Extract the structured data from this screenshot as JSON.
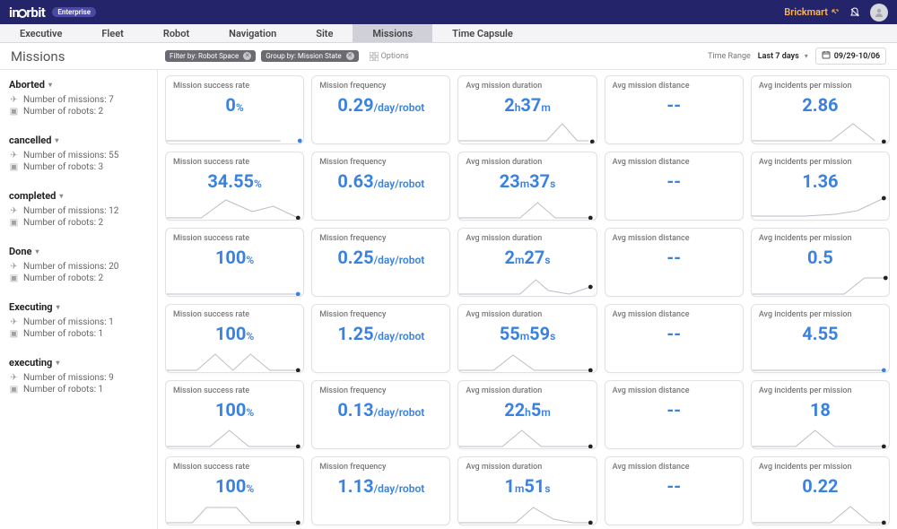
{
  "brand": {
    "name": "inOrbit",
    "badge": "Enterprise",
    "company": "Brickmart"
  },
  "nav": {
    "tabs": [
      "Executive",
      "Fleet",
      "Robot",
      "Navigation",
      "Site",
      "Missions",
      "Time Capsule"
    ],
    "active": "Missions"
  },
  "page": {
    "title": "Missions",
    "filters": {
      "filter_by": "Filter by: Robot Space",
      "group_by": "Group by: Mission State"
    },
    "options_label": "Options",
    "time_range_label": "Time Range",
    "time_range_value": "Last 7 days",
    "date_range": "09/29-10/06"
  },
  "card_labels": {
    "success": "Mission success rate",
    "freq": "Mission frequency",
    "freq_unit": "/day/robot",
    "duration": "Avg mission duration",
    "distance": "Avg mission distance",
    "incidents": "Avg incidents per mission"
  },
  "sidebar_labels": {
    "missions_prefix": "Number of missions:",
    "robots_prefix": "Number of robots:"
  },
  "colors": {
    "topbar_bg": "#24246b",
    "accent_blue": "#3a82e0",
    "accent_orange": "#ffb44a",
    "border": "#e0e0e5",
    "spark_stroke": "#bcbcc4",
    "dot_dark": "#222222"
  },
  "groups": [
    {
      "name": "Aborted",
      "missions": 7,
      "robots": 2,
      "cards": {
        "success": {
          "v": "0",
          "unit": "%",
          "spark": [
            [
              0,
              25
            ],
            [
              130,
              25
            ]
          ],
          "dot": [
            152,
            25
          ],
          "dot_blue": true
        },
        "freq": {
          "v": "0.29",
          "unit": "/day/robot",
          "spark": [],
          "dot": null
        },
        "duration": {
          "v_html": "2<span class='unit'>h</span>37<span class='unit'>m</span>",
          "spark": [
            [
              0,
              25
            ],
            [
              100,
              25
            ],
            [
              118,
              6
            ],
            [
              135,
              25
            ],
            [
              148,
              25
            ]
          ],
          "dot": [
            152,
            26
          ]
        },
        "distance": {
          "v": "--",
          "spark": [],
          "dot": null
        },
        "incidents": {
          "v": "2.86",
          "spark": [
            [
              0,
              25
            ],
            [
              90,
              25
            ],
            [
              115,
              6
            ],
            [
              140,
              25
            ]
          ],
          "dot": [
            150,
            26
          ]
        }
      }
    },
    {
      "name": "cancelled",
      "missions": 55,
      "robots": 3,
      "cards": {
        "success": {
          "v": "34.55",
          "unit": "%",
          "spark": [
            [
              0,
              26
            ],
            [
              40,
              26
            ],
            [
              68,
              6
            ],
            [
              98,
              19
            ],
            [
              122,
              13
            ],
            [
              150,
              26
            ]
          ],
          "dot": [
            150,
            26
          ]
        },
        "freq": {
          "v": "0.63",
          "unit": "/day/robot",
          "spark": [],
          "dot": null
        },
        "duration": {
          "v_html": "23<span class='unit'>m</span>37<span class='unit'>s</span>",
          "spark": [
            [
              0,
              26
            ],
            [
              70,
              26
            ],
            [
              90,
              9
            ],
            [
              110,
              26
            ],
            [
              150,
              26
            ]
          ],
          "dot": [
            150,
            26
          ]
        },
        "distance": {
          "v": "--",
          "spark": [],
          "dot": null
        },
        "incidents": {
          "v": "1.36",
          "spark": [
            [
              0,
              24
            ],
            [
              60,
              24
            ],
            [
              95,
              22
            ],
            [
              120,
              18
            ],
            [
              150,
              4
            ]
          ],
          "dot": [
            150,
            4
          ]
        }
      }
    },
    {
      "name": "completed",
      "missions": 12,
      "robots": 2,
      "cards": {
        "success": {
          "v": "100",
          "unit": "%",
          "spark": [
            [
              0,
              26
            ],
            [
              150,
              26
            ]
          ],
          "dot": [
            150,
            26
          ],
          "dot_blue": true
        },
        "freq": {
          "v": "0.25",
          "unit": "/day/robot",
          "spark": [],
          "dot": null
        },
        "duration": {
          "v_html": "2<span class='unit'>m</span>27<span class='unit'>s</span>",
          "spark": [
            [
              0,
              26
            ],
            [
              70,
              26
            ],
            [
              88,
              10
            ],
            [
              102,
              22
            ],
            [
              126,
              26
            ],
            [
              150,
              18
            ]
          ],
          "dot": [
            150,
            18
          ]
        },
        "distance": {
          "v": "--",
          "spark": [],
          "dot": null
        },
        "incidents": {
          "v": "0.5",
          "spark": [
            [
              0,
              26
            ],
            [
              105,
              26
            ],
            [
              128,
              8
            ],
            [
              152,
              8
            ]
          ],
          "dot": [
            152,
            8
          ]
        }
      }
    },
    {
      "name": "Done",
      "missions": 20,
      "robots": 2,
      "cards": {
        "success": {
          "v": "100",
          "unit": "%",
          "spark": [
            [
              0,
              26
            ],
            [
              35,
              26
            ],
            [
              56,
              8
            ],
            [
              76,
              26
            ],
            [
              96,
              8
            ],
            [
              118,
              26
            ],
            [
              150,
              26
            ]
          ],
          "dot": [
            150,
            26
          ]
        },
        "freq": {
          "v": "1.25",
          "unit": "/day/robot",
          "spark": [],
          "dot": null
        },
        "duration": {
          "v_html": "55<span class='unit'>m</span>59<span class='unit'>s</span>",
          "spark": [
            [
              0,
              26
            ],
            [
              40,
              26
            ],
            [
              62,
              9
            ],
            [
              86,
              26
            ],
            [
              150,
              26
            ]
          ],
          "dot": [
            150,
            26
          ]
        },
        "distance": {
          "v": "--",
          "spark": [],
          "dot": null
        },
        "incidents": {
          "v": "4.55",
          "spark": [
            [
              0,
              26
            ],
            [
              150,
              26
            ]
          ],
          "dot": [
            150,
            26
          ],
          "dot_blue": true
        }
      }
    },
    {
      "name": "Executing",
      "missions": 1,
      "robots": 1,
      "cards": {
        "success": {
          "v": "100",
          "unit": "%",
          "spark": [
            [
              0,
              26
            ],
            [
              50,
              26
            ],
            [
              72,
              8
            ],
            [
              94,
              26
            ],
            [
              150,
              26
            ]
          ],
          "dot": [
            150,
            26
          ]
        },
        "freq": {
          "v": "0.13",
          "unit": "/day/robot",
          "spark": [],
          "dot": null
        },
        "duration": {
          "v_html": "22<span class='unit'>h</span>5<span class='unit'>m</span>",
          "spark": [
            [
              0,
              26
            ],
            [
              50,
              26
            ],
            [
              72,
              8
            ],
            [
              94,
              26
            ],
            [
              150,
              26
            ]
          ],
          "dot": [
            150,
            26
          ]
        },
        "distance": {
          "v": "--",
          "spark": [],
          "dot": null
        },
        "incidents": {
          "v": "18",
          "spark": [
            [
              0,
              26
            ],
            [
              50,
              26
            ],
            [
              72,
              8
            ],
            [
              94,
              26
            ],
            [
              150,
              26
            ]
          ],
          "dot": [
            150,
            26
          ]
        }
      }
    },
    {
      "name": "executing",
      "missions": 9,
      "robots": 1,
      "cards": {
        "success": {
          "v": "100",
          "unit": "%",
          "spark": [
            [
              0,
              26
            ],
            [
              30,
              26
            ],
            [
              46,
              9
            ],
            [
              80,
              9
            ],
            [
              96,
              26
            ],
            [
              150,
              26
            ]
          ],
          "dot": [
            150,
            26
          ]
        },
        "freq": {
          "v": "1.13",
          "unit": "/day/robot",
          "spark": [],
          "dot": null
        },
        "duration": {
          "v_html": "1<span class='unit'>m</span>51<span class='unit'>s</span>",
          "spark": [
            [
              0,
              26
            ],
            [
              65,
              26
            ],
            [
              85,
              9
            ],
            [
              108,
              22
            ],
            [
              130,
              26
            ],
            [
              150,
              26
            ]
          ],
          "dot": [
            150,
            26
          ]
        },
        "distance": {
          "v": "--",
          "spark": [],
          "dot": null
        },
        "incidents": {
          "v": "0.22",
          "spark": [
            [
              0,
              26
            ],
            [
              90,
              26
            ],
            [
              112,
              8
            ],
            [
              134,
              26
            ],
            [
              150,
              26
            ]
          ],
          "dot": [
            150,
            26
          ]
        }
      }
    }
  ]
}
